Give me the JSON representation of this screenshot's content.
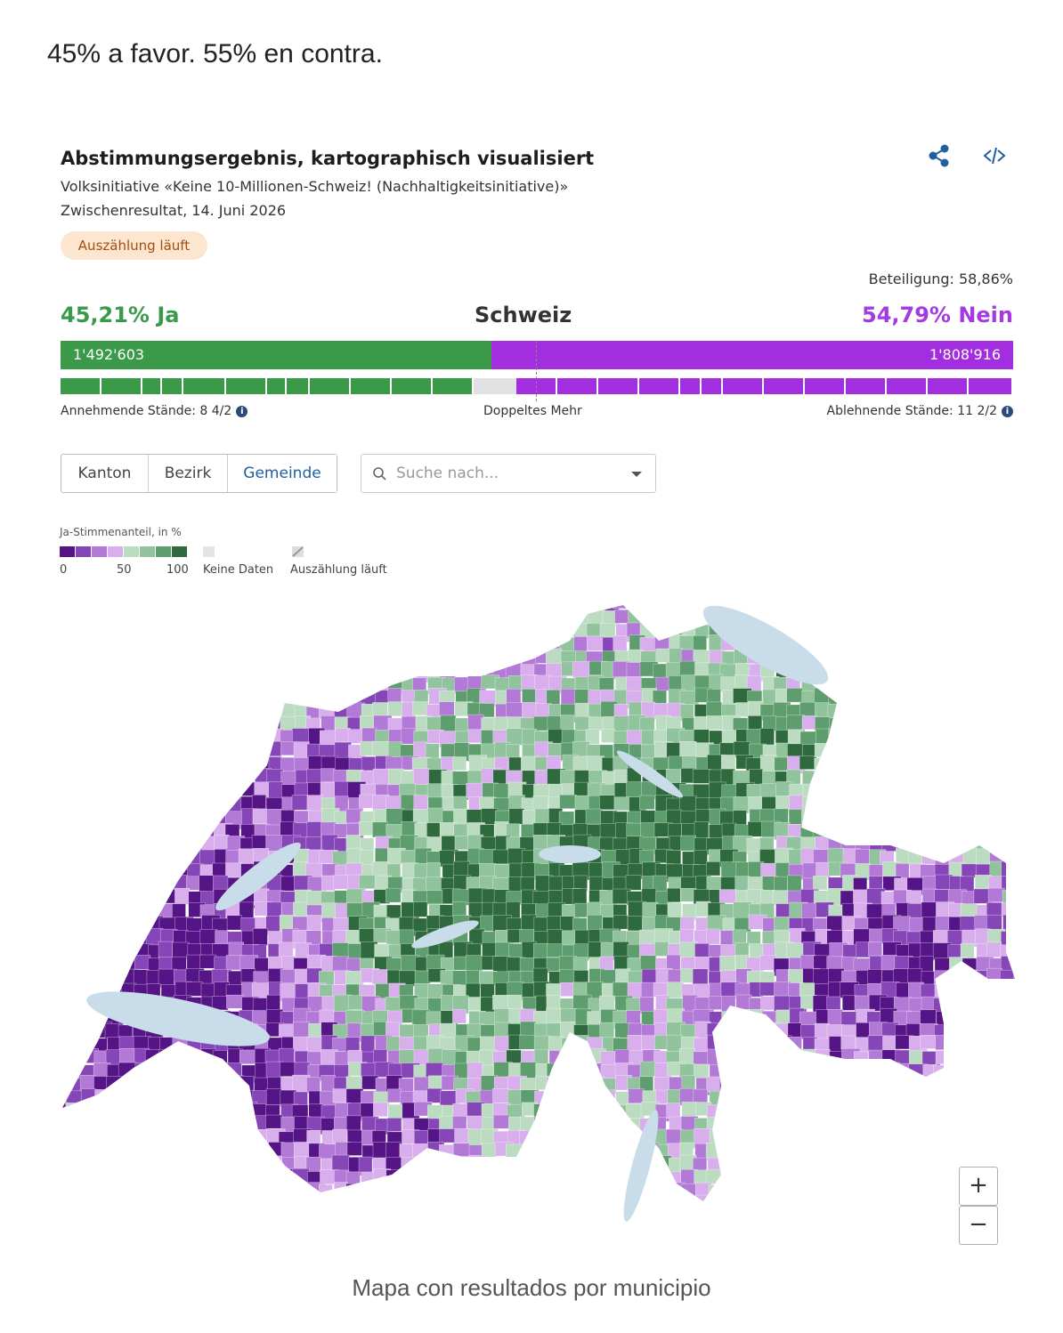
{
  "headline": "45% a favor. 55% en contra.",
  "widget": {
    "title": "Abstimmungsergebnis, kartographisch visualisiert",
    "subtitle": "Volksinitiative «Keine 10-Millionen-Schweiz! (Nachhaltigkeitsinitiative)»",
    "status_line": "Zwischenresultat, 14. Juni 2026",
    "badge": "Auszählung läuft",
    "turnout": "Beteiligung: 58,86%",
    "yes_label": "45,21% Ja",
    "region": "Schweiz",
    "no_label": "54,79% Nein",
    "yes_votes": "1'492'603",
    "no_votes": "1'808'916",
    "yes_cantons": "Annehmende Stände: 8 4/2",
    "double_majority": "Doppeltes Mehr",
    "no_cantons": "Ablehnende Stände: 11 2/2",
    "tabs": [
      "Kanton",
      "Bezirk",
      "Gemeinde"
    ],
    "search_placeholder": "Suche nach...",
    "legend": {
      "title": "Ja-Stimmenanteil, in %",
      "ticks": [
        "0",
        "50",
        "100"
      ],
      "no_data": "Keine Daten",
      "counting": "Auszählung läuft"
    },
    "zoom_in": "+",
    "zoom_out": "−"
  },
  "caption": "Mapa con resultados por municipio"
}
